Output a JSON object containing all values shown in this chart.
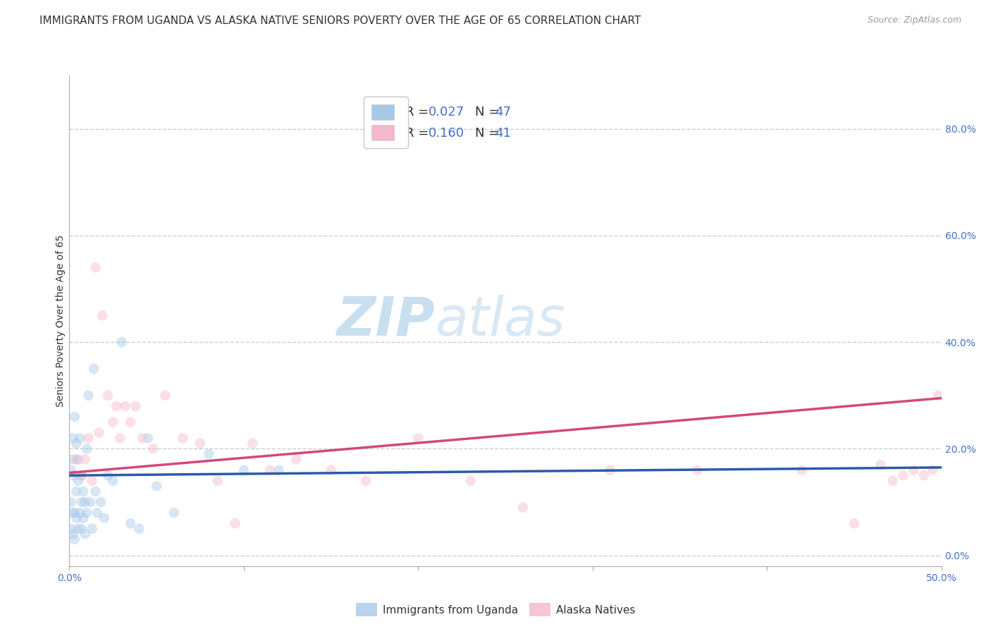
{
  "title": "IMMIGRANTS FROM UGANDA VS ALASKA NATIVE SENIORS POVERTY OVER THE AGE OF 65 CORRELATION CHART",
  "source": "Source: ZipAtlas.com",
  "ylabel": "Seniors Poverty Over the Age of 65",
  "xlim": [
    0.0,
    0.5
  ],
  "ylim": [
    -0.02,
    0.9
  ],
  "xticks": [
    0.0,
    0.1,
    0.2,
    0.3,
    0.4,
    0.5
  ],
  "xticklabels_show": [
    "0.0%",
    "",
    "",
    "",
    "",
    "50.0%"
  ],
  "yticks_right": [
    0.0,
    0.2,
    0.4,
    0.6,
    0.8
  ],
  "yticklabels_right": [
    "0.0%",
    "20.0%",
    "40.0%",
    "60.0%",
    "80.0%"
  ],
  "background_color": "#ffffff",
  "watermark_zip": "ZIP",
  "watermark_atlas": "atlas",
  "legend1_label_r": "R = 0.027",
  "legend1_label_n": "N = 47",
  "legend2_label_r": "R = 0.160",
  "legend2_label_n": "N = 41",
  "legend_bottom1": "Immigrants from Uganda",
  "legend_bottom2": "Alaska Natives",
  "blue_color": "#a8c8e8",
  "pink_color": "#f4b8c8",
  "blue_line_color": "#2b5ba8",
  "pink_line_color": "#d44878",
  "blue_scatter_x": [
    0.001,
    0.001,
    0.001,
    0.002,
    0.002,
    0.002,
    0.002,
    0.003,
    0.003,
    0.003,
    0.003,
    0.004,
    0.004,
    0.004,
    0.005,
    0.005,
    0.005,
    0.006,
    0.006,
    0.007,
    0.007,
    0.007,
    0.008,
    0.008,
    0.009,
    0.009,
    0.01,
    0.01,
    0.011,
    0.012,
    0.013,
    0.014,
    0.015,
    0.016,
    0.018,
    0.02,
    0.022,
    0.025,
    0.03,
    0.035,
    0.04,
    0.045,
    0.05,
    0.06,
    0.08,
    0.1,
    0.12
  ],
  "blue_scatter_y": [
    0.16,
    0.1,
    0.05,
    0.22,
    0.18,
    0.08,
    0.04,
    0.26,
    0.15,
    0.08,
    0.03,
    0.21,
    0.12,
    0.07,
    0.18,
    0.14,
    0.05,
    0.22,
    0.08,
    0.15,
    0.1,
    0.05,
    0.12,
    0.07,
    0.1,
    0.04,
    0.2,
    0.08,
    0.3,
    0.1,
    0.05,
    0.35,
    0.12,
    0.08,
    0.1,
    0.07,
    0.15,
    0.14,
    0.4,
    0.06,
    0.05,
    0.22,
    0.13,
    0.08,
    0.19,
    0.16,
    0.16
  ],
  "pink_scatter_x": [
    0.004,
    0.007,
    0.009,
    0.011,
    0.013,
    0.015,
    0.017,
    0.019,
    0.022,
    0.025,
    0.027,
    0.029,
    0.032,
    0.035,
    0.038,
    0.042,
    0.048,
    0.055,
    0.065,
    0.075,
    0.085,
    0.095,
    0.105,
    0.115,
    0.13,
    0.15,
    0.17,
    0.2,
    0.23,
    0.26,
    0.31,
    0.36,
    0.42,
    0.45,
    0.465,
    0.472,
    0.478,
    0.484,
    0.49,
    0.495,
    0.498
  ],
  "pink_scatter_y": [
    0.18,
    0.15,
    0.18,
    0.22,
    0.14,
    0.54,
    0.23,
    0.45,
    0.3,
    0.25,
    0.28,
    0.22,
    0.28,
    0.25,
    0.28,
    0.22,
    0.2,
    0.3,
    0.22,
    0.21,
    0.14,
    0.06,
    0.21,
    0.16,
    0.18,
    0.16,
    0.14,
    0.22,
    0.14,
    0.09,
    0.16,
    0.16,
    0.16,
    0.06,
    0.17,
    0.14,
    0.15,
    0.16,
    0.15,
    0.16,
    0.3
  ],
  "blue_trend_x": [
    0.0,
    0.5
  ],
  "blue_trend_y": [
    0.15,
    0.165
  ],
  "pink_trend_x": [
    0.0,
    0.5
  ],
  "pink_trend_y": [
    0.155,
    0.295
  ],
  "gridline_color": "#cccccc",
  "gridline_style": "--",
  "title_fontsize": 11,
  "source_fontsize": 9,
  "label_fontsize": 10,
  "tick_fontsize": 10,
  "tick_color": "#4472c4",
  "marker_size": 110,
  "marker_alpha": 0.45,
  "watermark_color_zip": "#c8dff0",
  "watermark_color_atlas": "#d8e8f4",
  "watermark_fontsize": 55
}
